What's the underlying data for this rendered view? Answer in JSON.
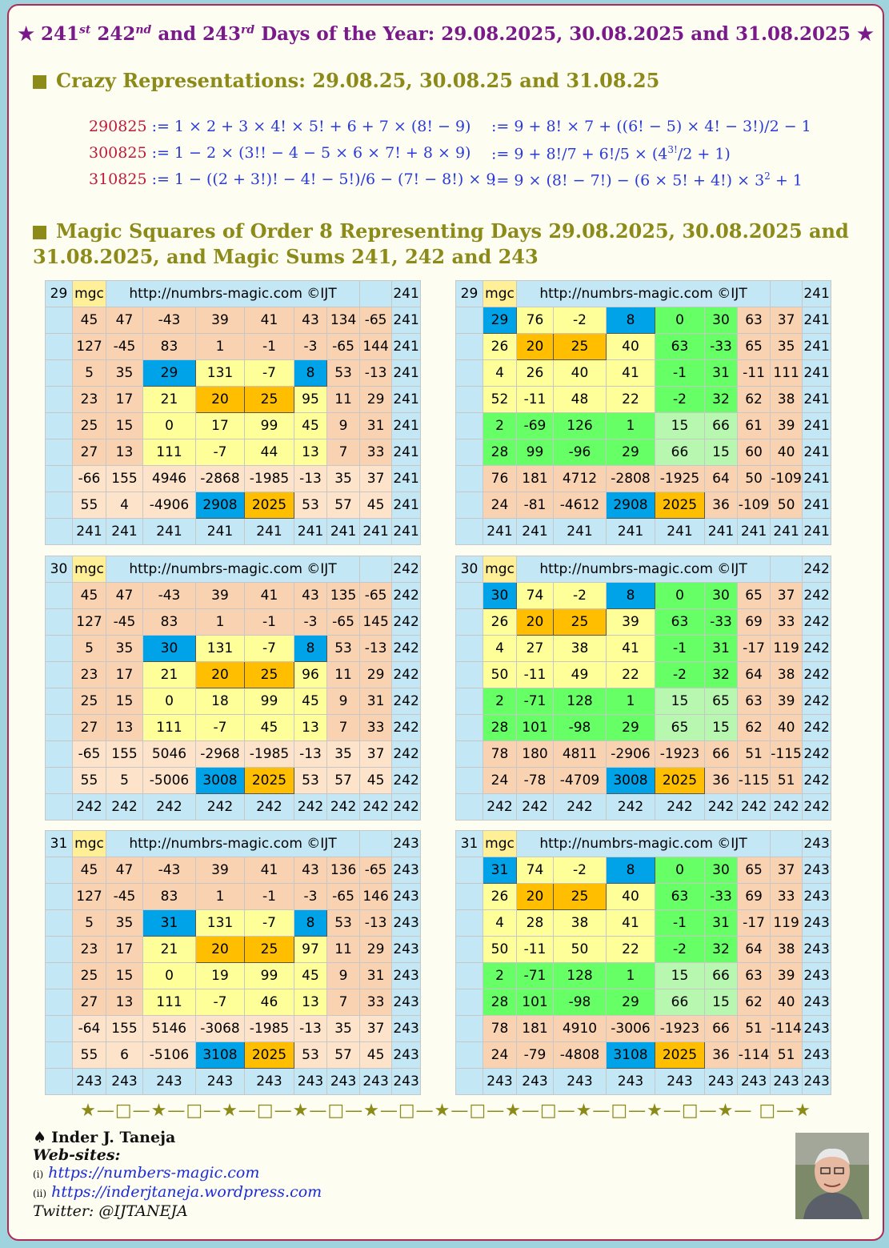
{
  "title": {
    "p1": "★ 241",
    "s1": "st",
    "p2": "  242",
    "s2": "nd",
    "p3": " and 243",
    "s3": "rd",
    "p4": " Days of the Year: 29.08.2025, 30.08.2025 and 31.08.2025 ★"
  },
  "section1_title": "Crazy Representations: 29.08.25, 30.08.25 and 31.08.25",
  "equations": [
    {
      "date": "290825",
      "left": " := 1 × 2 + 3 × 4! × 5! + 6 + 7 × (8! − 9)",
      "right": " := 9 + 8! × 7 + ((6! − 5) × 4! − 3!)/2 − 1"
    },
    {
      "date": "300825",
      "left": " := 1 − 2 × (3!! − 4 − 5 × 6 × 7! + 8 × 9)",
      "right": " := 9 + 8!/7 + 6!/5 × (4",
      "sup": "3!",
      "right2": "/2 + 1)"
    },
    {
      "date": "310825",
      "left": " := 1 − ((2 + 3!)! − 4! − 5!)/6 − (7! − 8!) × 9",
      "right": " := 9 × (8! − 7!) − (6 × 5! + 4!) × 3",
      "sup": "2",
      "right2": " + 1"
    }
  ],
  "section2_title": "Magic Squares of Order 8 Representing Days 29.08.2025, 30.08.2025 and 31.08.2025, and Magic Sums 241, 242 and 243",
  "header_url": "http://numbrs-magic.com  ©IJT",
  "header_mgc": "mgc",
  "squares": [
    {
      "day": "29",
      "sum": "241",
      "rows": [
        [
          45,
          47,
          -43,
          39,
          41,
          43,
          134,
          -65
        ],
        [
          127,
          -45,
          83,
          1,
          -1,
          -3,
          -65,
          144
        ],
        [
          5,
          35,
          29,
          131,
          -7,
          8,
          53,
          -13
        ],
        [
          23,
          17,
          21,
          20,
          25,
          95,
          11,
          29
        ],
        [
          25,
          15,
          0,
          17,
          99,
          45,
          9,
          31
        ],
        [
          27,
          13,
          111,
          -7,
          44,
          13,
          7,
          33
        ],
        [
          -66,
          155,
          4946,
          -2868,
          -1985,
          -13,
          35,
          37
        ],
        [
          55,
          4,
          -4906,
          2908,
          2025,
          53,
          57,
          45
        ]
      ]
    },
    {
      "day": "29",
      "sum": "241",
      "rows": [
        [
          29,
          76,
          -2,
          8,
          0,
          30,
          63,
          37
        ],
        [
          26,
          20,
          25,
          40,
          63,
          -33,
          65,
          35
        ],
        [
          4,
          26,
          40,
          41,
          -1,
          31,
          -11,
          111
        ],
        [
          52,
          -11,
          48,
          22,
          -2,
          32,
          62,
          38
        ],
        [
          2,
          -69,
          126,
          1,
          15,
          66,
          61,
          39
        ],
        [
          28,
          99,
          -96,
          29,
          66,
          15,
          60,
          40
        ],
        [
          76,
          181,
          4712,
          -2808,
          -1925,
          64,
          50,
          -109
        ],
        [
          24,
          -81,
          -4612,
          2908,
          2025,
          36,
          -109,
          50
        ]
      ]
    },
    {
      "day": "30",
      "sum": "242",
      "rows": [
        [
          45,
          47,
          -43,
          39,
          41,
          43,
          135,
          -65
        ],
        [
          127,
          -45,
          83,
          1,
          -1,
          -3,
          -65,
          145
        ],
        [
          5,
          35,
          30,
          131,
          -7,
          8,
          53,
          -13
        ],
        [
          23,
          17,
          21,
          20,
          25,
          96,
          11,
          29
        ],
        [
          25,
          15,
          0,
          18,
          99,
          45,
          9,
          31
        ],
        [
          27,
          13,
          111,
          -7,
          45,
          13,
          7,
          33
        ],
        [
          -65,
          155,
          5046,
          -2968,
          -1985,
          -13,
          35,
          37
        ],
        [
          55,
          5,
          -5006,
          3008,
          2025,
          53,
          57,
          45
        ]
      ]
    },
    {
      "day": "30",
      "sum": "242",
      "rows": [
        [
          30,
          74,
          -2,
          8,
          0,
          30,
          65,
          37
        ],
        [
          26,
          20,
          25,
          39,
          63,
          -33,
          69,
          33
        ],
        [
          4,
          27,
          38,
          41,
          -1,
          31,
          -17,
          119
        ],
        [
          50,
          -11,
          49,
          22,
          -2,
          32,
          64,
          38
        ],
        [
          2,
          -71,
          128,
          1,
          15,
          65,
          63,
          39
        ],
        [
          28,
          101,
          -98,
          29,
          65,
          15,
          62,
          40
        ],
        [
          78,
          180,
          4811,
          -2906,
          -1923,
          66,
          51,
          -115
        ],
        [
          24,
          -78,
          -4709,
          3008,
          2025,
          36,
          -115,
          51
        ]
      ]
    },
    {
      "day": "31",
      "sum": "243",
      "rows": [
        [
          45,
          47,
          -43,
          39,
          41,
          43,
          136,
          -65
        ],
        [
          127,
          -45,
          83,
          1,
          -1,
          -3,
          -65,
          146
        ],
        [
          5,
          35,
          31,
          131,
          -7,
          8,
          53,
          -13
        ],
        [
          23,
          17,
          21,
          20,
          25,
          97,
          11,
          29
        ],
        [
          25,
          15,
          0,
          19,
          99,
          45,
          9,
          31
        ],
        [
          27,
          13,
          111,
          -7,
          46,
          13,
          7,
          33
        ],
        [
          -64,
          155,
          5146,
          -3068,
          -1985,
          -13,
          35,
          37
        ],
        [
          55,
          6,
          -5106,
          3108,
          2025,
          53,
          57,
          45
        ]
      ]
    },
    {
      "day": "31",
      "sum": "243",
      "rows": [
        [
          31,
          74,
          -2,
          8,
          0,
          30,
          65,
          37
        ],
        [
          26,
          20,
          25,
          40,
          63,
          -33,
          69,
          33
        ],
        [
          4,
          28,
          38,
          41,
          -1,
          31,
          -17,
          119
        ],
        [
          50,
          -11,
          50,
          22,
          -2,
          32,
          64,
          38
        ],
        [
          2,
          -71,
          128,
          1,
          15,
          66,
          63,
          39
        ],
        [
          28,
          101,
          -98,
          29,
          66,
          15,
          62,
          40
        ],
        [
          78,
          181,
          4910,
          -3006,
          -1923,
          66,
          51,
          -114
        ],
        [
          24,
          -79,
          -4808,
          3108,
          2025,
          36,
          -114,
          51
        ]
      ]
    }
  ],
  "colors": {
    "peach": "#f9d3b1",
    "light_peach": "#fce3c9",
    "yellow": "#ffff99",
    "blue": "#00a2e8",
    "orange": "#ffbf00",
    "green": "#66ff66",
    "light_green": "#b8f7b0",
    "header_blue": "#c3e7f5",
    "title_purple": "#7a1a8a",
    "section_olive": "#8c8a18",
    "date_red": "#c01a3a"
  },
  "stars_line": "★—□—★—□—★—□—★—□—★—□—★—□—★—□—★—□—★—□—★— □—★",
  "author": {
    "name": "Inder J. Taneja",
    "websites_label": "Web-sites:",
    "site1_prefix": "(i)",
    "site1": "https://numbers-magic.com",
    "site2_prefix": "(ii)",
    "site2": "https://inderjtaneja.wordpress.com",
    "twitter": "Twitter: @IJTANEJA",
    "spade_icon": "spade-icon"
  }
}
